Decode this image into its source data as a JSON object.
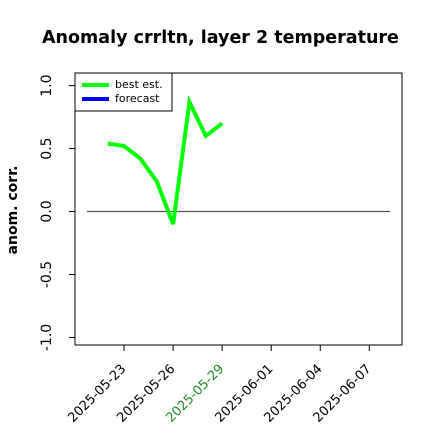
{
  "chart_data": {
    "type": "line",
    "title": "Anomaly crrltn, layer 2 temperature",
    "ylabel": "anom. corr.",
    "x": [
      "2025-05-22",
      "2025-05-23",
      "2025-05-24",
      "2025-05-25",
      "2025-05-26",
      "2025-05-27",
      "2025-05-28",
      "2025-05-29"
    ],
    "series": [
      {
        "name": "best est.",
        "color": "#00ff00",
        "values": [
          0.54,
          0.52,
          0.42,
          0.24,
          -0.1,
          0.87,
          0.6,
          0.7
        ]
      },
      {
        "name": "forecast",
        "color": "#0000ff",
        "values": [
          null,
          null,
          null,
          null,
          null,
          null,
          null,
          null
        ]
      }
    ],
    "xlim": [
      "2025-05-20",
      "2025-06-09"
    ],
    "xticks": [
      "2025-05-23",
      "2025-05-26",
      "2025-05-29",
      "2025-06-01",
      "2025-06-04",
      "2025-06-07"
    ],
    "highlight_xtick": "2025-05-29",
    "highlight_color": "#228b22",
    "ylim": [
      -1.06,
      1.1
    ],
    "yticks": [
      {
        "value": -1,
        "label": "-1.0"
      },
      {
        "value": -0.5,
        "label": "-0.5"
      },
      {
        "value": 0,
        "label": "0.0"
      },
      {
        "value": 0.5,
        "label": "0.5"
      },
      {
        "value": 1,
        "label": "1.0"
      }
    ],
    "reference_line": 0,
    "legend": "upper left"
  }
}
